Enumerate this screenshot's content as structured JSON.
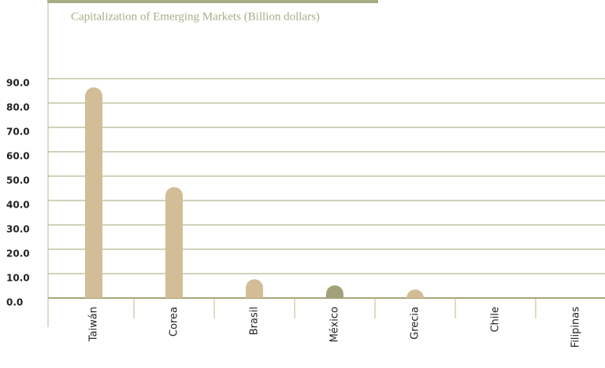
{
  "chart_data": {
    "type": "bar",
    "title": "Capitalization of Emerging Markets (Billion dollars)",
    "categories": [
      "Taiwán",
      "Corea",
      "Brasil",
      "México",
      "Grecia",
      "Chile",
      "Filipinas"
    ],
    "values": [
      86.4,
      45.5,
      7.7,
      5.2,
      3.5,
      0,
      0
    ],
    "colors": [
      "#d3bd96",
      "#d3bd96",
      "#d3bd96",
      "#a3a079",
      "#d3bd96",
      "#d3bd96",
      "#d3bd96"
    ],
    "ylim": [
      0,
      90
    ],
    "yticks": [
      {
        "value": 0,
        "label": "0.0"
      },
      {
        "value": 10,
        "label": "10.0"
      },
      {
        "value": 20,
        "label": "20.0"
      },
      {
        "value": 30,
        "label": "30.0"
      },
      {
        "value": 40,
        "label": "40.0"
      },
      {
        "value": 50,
        "label": "50.0"
      },
      {
        "value": 60,
        "label": "60.0"
      },
      {
        "value": 70,
        "label": "70.0"
      },
      {
        "value": 80,
        "label": "80.0"
      },
      {
        "value": 90,
        "label": "90.0"
      }
    ],
    "grid": true
  }
}
